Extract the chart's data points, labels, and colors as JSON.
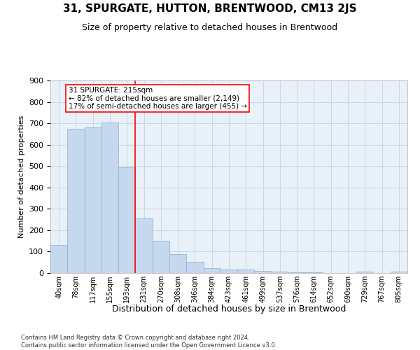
{
  "title": "31, SPURGATE, HUTTON, BRENTWOOD, CM13 2JS",
  "subtitle": "Size of property relative to detached houses in Brentwood",
  "xlabel": "Distribution of detached houses by size in Brentwood",
  "ylabel": "Number of detached properties",
  "footer_line1": "Contains HM Land Registry data © Crown copyright and database right 2024.",
  "footer_line2": "Contains public sector information licensed under the Open Government Licence v3.0.",
  "bar_labels": [
    "40sqm",
    "78sqm",
    "117sqm",
    "155sqm",
    "193sqm",
    "231sqm",
    "270sqm",
    "308sqm",
    "346sqm",
    "384sqm",
    "423sqm",
    "461sqm",
    "499sqm",
    "537sqm",
    "576sqm",
    "614sqm",
    "652sqm",
    "690sqm",
    "729sqm",
    "767sqm",
    "805sqm"
  ],
  "bar_values": [
    130,
    675,
    680,
    705,
    495,
    255,
    150,
    90,
    53,
    22,
    18,
    18,
    10,
    5,
    3,
    2,
    1,
    1,
    5,
    1,
    7
  ],
  "bar_color": "#c5d8ed",
  "bar_edgecolor": "#8ab0cc",
  "annotation_line1": "31 SPURGATE: 215sqm",
  "annotation_line2": "← 82% of detached houses are smaller (2,149)",
  "annotation_line3": "17% of semi-detached houses are larger (455) →",
  "red_line_x": 4.5,
  "ylim": [
    0,
    900
  ],
  "yticks": [
    0,
    100,
    200,
    300,
    400,
    500,
    600,
    700,
    800,
    900
  ],
  "grid_color": "#c8d8e8",
  "bg_color": "#e8f0f8",
  "title_fontsize": 11,
  "subtitle_fontsize": 9,
  "tick_fontsize": 7,
  "ylabel_fontsize": 8,
  "xlabel_fontsize": 9,
  "footer_fontsize": 6,
  "annot_fontsize": 7.5
}
